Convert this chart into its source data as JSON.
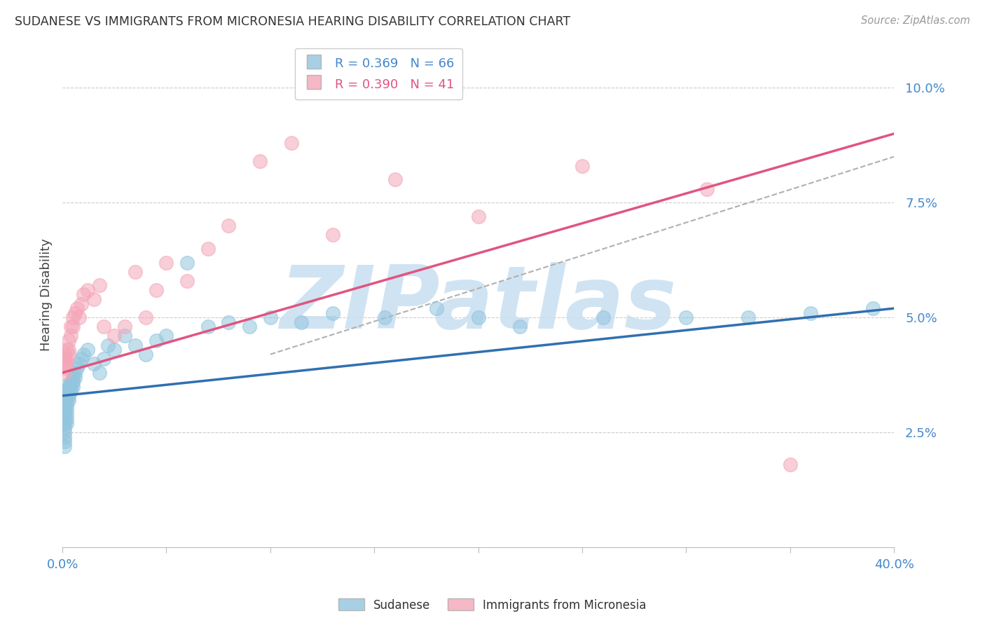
{
  "title": "SUDANESE VS IMMIGRANTS FROM MICRONESIA HEARING DISABILITY CORRELATION CHART",
  "source": "Source: ZipAtlas.com",
  "ylabel": "Hearing Disability",
  "xlim": [
    0.0,
    0.4
  ],
  "ylim": [
    0.0,
    0.11
  ],
  "ytick_positions": [
    0.025,
    0.05,
    0.075,
    0.1
  ],
  "ytick_labels": [
    "2.5%",
    "5.0%",
    "7.5%",
    "10.0%"
  ],
  "legend_r1": "R = 0.369",
  "legend_n1": "N = 66",
  "legend_r2": "R = 0.390",
  "legend_n2": "N = 41",
  "color_blue": "#92c5de",
  "color_pink": "#f4a6b8",
  "color_blue_line": "#3070b0",
  "color_pink_line": "#e05580",
  "color_dashed": "#b0b0b0",
  "color_text_blue": "#4488cc",
  "color_text_pink": "#e05580",
  "color_grid": "#cccccc",
  "watermark_text": "ZIPatlas",
  "watermark_color": "#c8dff0",
  "bg_color": "#ffffff",
  "blue_line_x0": 0.0,
  "blue_line_y0": 0.033,
  "blue_line_x1": 0.4,
  "blue_line_y1": 0.052,
  "pink_line_x0": 0.0,
  "pink_line_y0": 0.038,
  "pink_line_x1": 0.4,
  "pink_line_y1": 0.09,
  "dash_line_x0": 0.1,
  "dash_line_y0": 0.042,
  "dash_line_x1": 0.4,
  "dash_line_y1": 0.085,
  "sudanese_x": [
    0.001,
    0.001,
    0.001,
    0.001,
    0.001,
    0.001,
    0.001,
    0.001,
    0.001,
    0.001,
    0.001,
    0.001,
    0.001,
    0.001,
    0.001,
    0.002,
    0.002,
    0.002,
    0.002,
    0.002,
    0.002,
    0.002,
    0.002,
    0.003,
    0.003,
    0.003,
    0.003,
    0.004,
    0.004,
    0.004,
    0.005,
    0.005,
    0.005,
    0.006,
    0.006,
    0.007,
    0.008,
    0.009,
    0.01,
    0.012,
    0.015,
    0.018,
    0.02,
    0.022,
    0.025,
    0.03,
    0.035,
    0.04,
    0.045,
    0.05,
    0.06,
    0.07,
    0.08,
    0.09,
    0.1,
    0.115,
    0.13,
    0.155,
    0.18,
    0.2,
    0.22,
    0.26,
    0.3,
    0.33,
    0.36,
    0.39
  ],
  "sudanese_y": [
    0.033,
    0.034,
    0.035,
    0.033,
    0.031,
    0.032,
    0.03,
    0.029,
    0.028,
    0.027,
    0.026,
    0.025,
    0.024,
    0.023,
    0.022,
    0.034,
    0.033,
    0.032,
    0.031,
    0.03,
    0.029,
    0.028,
    0.027,
    0.035,
    0.034,
    0.033,
    0.032,
    0.036,
    0.035,
    0.034,
    0.037,
    0.036,
    0.035,
    0.038,
    0.037,
    0.039,
    0.04,
    0.041,
    0.042,
    0.043,
    0.04,
    0.038,
    0.041,
    0.044,
    0.043,
    0.046,
    0.044,
    0.042,
    0.045,
    0.046,
    0.062,
    0.048,
    0.049,
    0.048,
    0.05,
    0.049,
    0.051,
    0.05,
    0.052,
    0.05,
    0.048,
    0.05,
    0.05,
    0.05,
    0.051,
    0.052
  ],
  "micronesia_x": [
    0.001,
    0.001,
    0.001,
    0.001,
    0.001,
    0.002,
    0.002,
    0.002,
    0.003,
    0.003,
    0.003,
    0.004,
    0.004,
    0.005,
    0.005,
    0.006,
    0.007,
    0.008,
    0.009,
    0.01,
    0.012,
    0.015,
    0.018,
    0.02,
    0.025,
    0.03,
    0.035,
    0.04,
    0.045,
    0.05,
    0.06,
    0.07,
    0.08,
    0.095,
    0.11,
    0.13,
    0.16,
    0.2,
    0.25,
    0.31,
    0.35
  ],
  "micronesia_y": [
    0.038,
    0.04,
    0.042,
    0.041,
    0.039,
    0.043,
    0.041,
    0.04,
    0.045,
    0.043,
    0.042,
    0.048,
    0.046,
    0.05,
    0.048,
    0.051,
    0.052,
    0.05,
    0.053,
    0.055,
    0.056,
    0.054,
    0.057,
    0.048,
    0.046,
    0.048,
    0.06,
    0.05,
    0.056,
    0.062,
    0.058,
    0.065,
    0.07,
    0.084,
    0.088,
    0.068,
    0.08,
    0.072,
    0.083,
    0.078,
    0.018
  ]
}
